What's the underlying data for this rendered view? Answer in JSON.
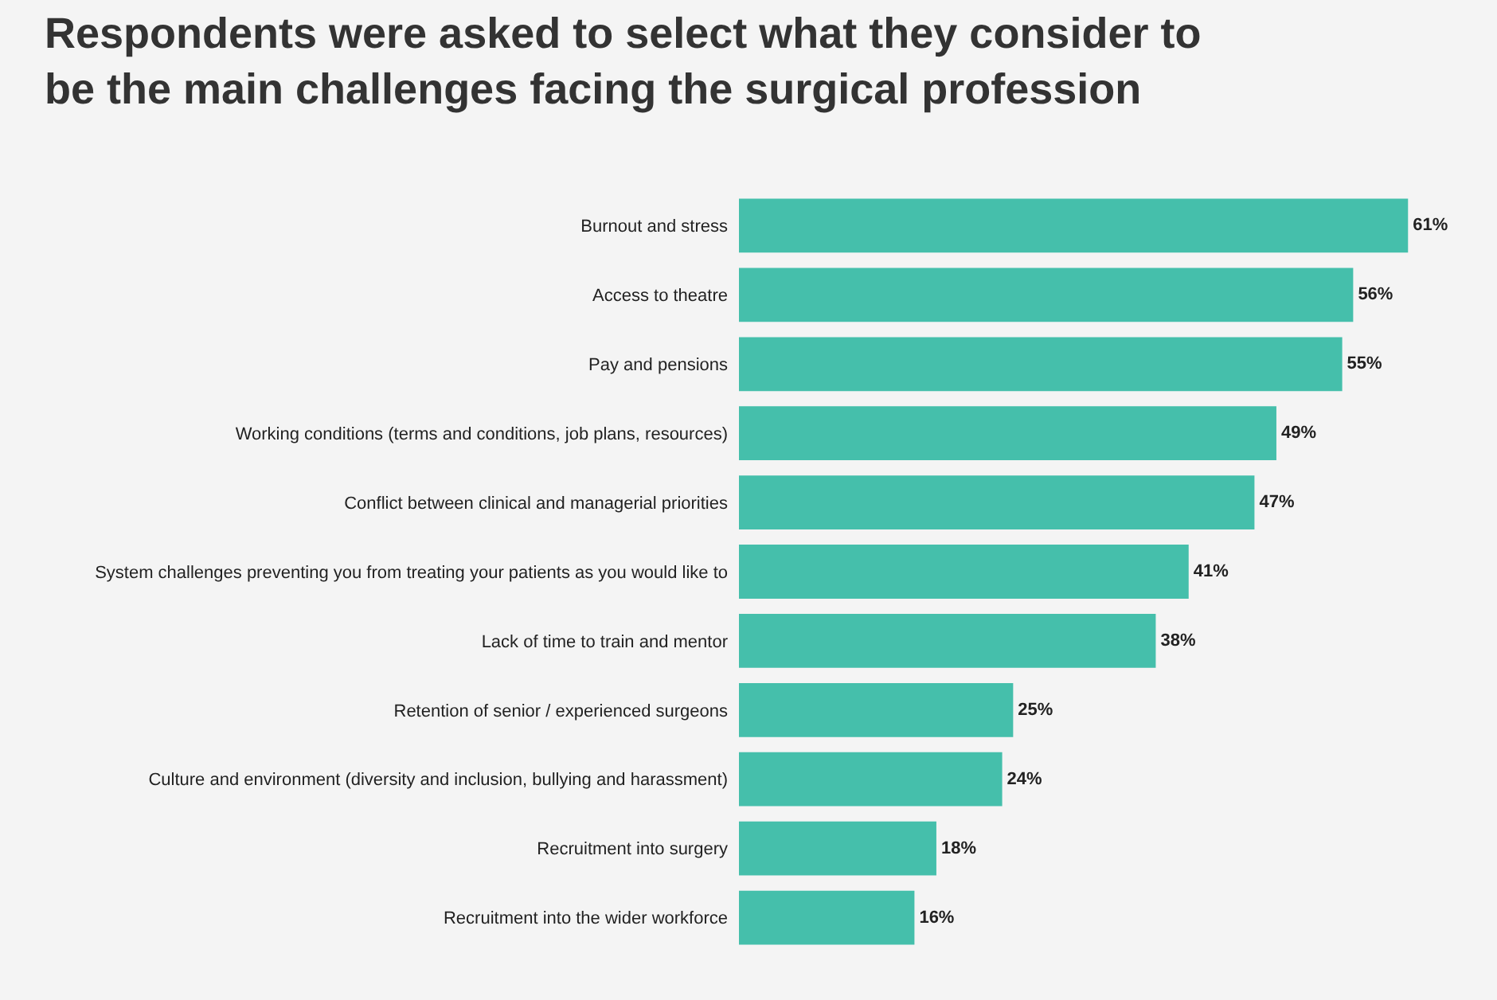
{
  "chart_data": {
    "type": "bar",
    "orientation": "horizontal",
    "title": "Respondents were asked to select what they consider to\nbe the main challenges facing the surgical profession",
    "categories": [
      "Burnout and stress",
      "Access to theatre",
      "Pay and pensions",
      "Working conditions (terms and conditions, job plans, resources)",
      "Conflict between clinical and managerial priorities",
      "System challenges preventing you from treating your patients as you would like to",
      "Lack of time to train and mentor",
      "Retention of senior / experienced surgeons",
      "Culture and environment (diversity and inclusion, bullying and harassment)",
      "Recruitment into surgery",
      "Recruitment into the wider workforce"
    ],
    "values": [
      61,
      56,
      55,
      49,
      47,
      41,
      38,
      25,
      24,
      18,
      16
    ],
    "value_labels": [
      "61%",
      "56%",
      "55%",
      "49%",
      "47%",
      "41%",
      "38%",
      "25%",
      "24%",
      "18%",
      "16%"
    ],
    "color": "#45bfab"
  }
}
